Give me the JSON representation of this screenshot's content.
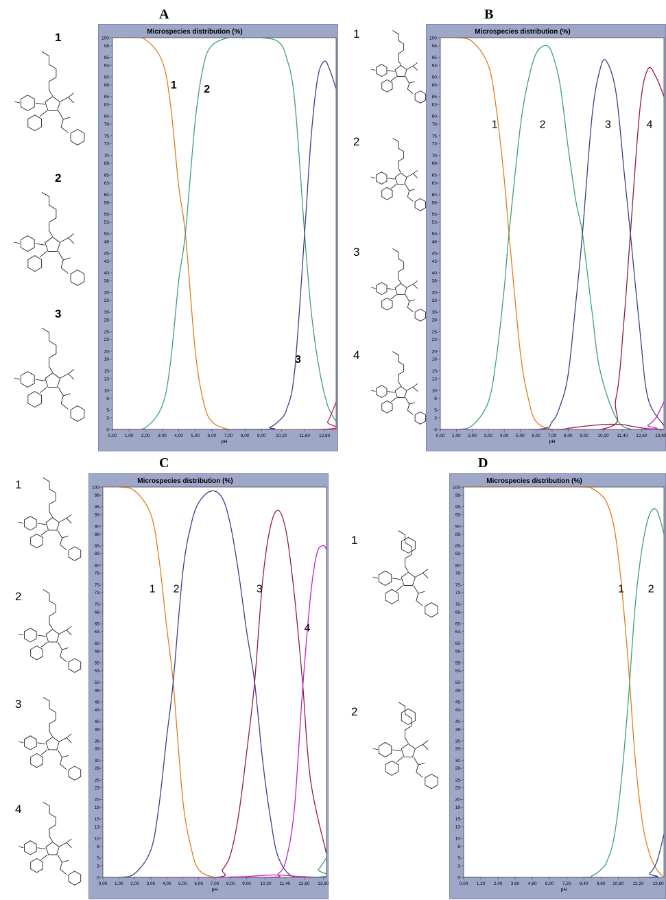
{
  "panels": [
    {
      "letter": "A",
      "molecules": [
        "1",
        "2",
        "3"
      ],
      "chart_data": {
        "type": "line",
        "title": "Microspecies distribution (%)",
        "xlabel": "pH",
        "ylabel": "",
        "xlim": [
          0,
          13.5
        ],
        "ylim": [
          0,
          100
        ],
        "xticks": [
          "0,00",
          "1,00",
          "2,00",
          "3,00",
          "4,00",
          "5,00",
          "6,00",
          "7,00",
          "8,00",
          "9,00",
          "10,20",
          "11,60",
          "12,80"
        ],
        "xtick_values": [
          0,
          1,
          2,
          3,
          4,
          5,
          6,
          7,
          8,
          9,
          10.2,
          11.6,
          12.8
        ],
        "series": [
          {
            "name": "1",
            "color": "#e07b1a",
            "x": [
              0,
              1,
              2,
              3,
              3.5,
              4,
              4.4,
              5,
              5.5,
              6,
              7,
              8,
              13.5
            ],
            "y": [
              100,
              100,
              99.5,
              94,
              83,
              62,
              50,
              20,
              7,
              2,
              0,
              0,
              0
            ]
          },
          {
            "name": "2",
            "color": "#3aa07a",
            "x": [
              0,
              1,
              2,
              3,
              3.5,
              4,
              4.4,
              5,
              5.5,
              6,
              7,
              8,
              9,
              10,
              10.5,
              11,
              11.6,
              12,
              12.5,
              13,
              13.5
            ],
            "y": [
              0,
              0,
              0.5,
              6,
              17,
              38,
              50,
              79,
              93,
              98,
              100,
              100,
              100,
              99,
              95,
              84,
              50,
              30,
              15,
              6,
              2
            ]
          },
          {
            "name": "3",
            "color": "#3a3d8a",
            "x": [
              0,
              9,
              9.5,
              10,
              10.5,
              11,
              11.6,
              12,
              12.4,
              12.8,
              13.1,
              13.5
            ],
            "y": [
              0,
              0,
              0.5,
              2,
              5,
              15,
              50,
              75,
              90,
              94,
              92,
              87
            ]
          },
          {
            "name": "",
            "color": "#c21f6a",
            "x": [
              0,
              12.5,
              13,
              13.5
            ],
            "y": [
              0,
              0,
              2,
              7
            ]
          }
        ],
        "annotations": [
          {
            "text": "1",
            "x": 3.7,
            "y": 87
          },
          {
            "text": "2",
            "x": 5.7,
            "y": 86
          },
          {
            "text": "3",
            "x": 11.2,
            "y": 17
          }
        ]
      }
    },
    {
      "letter": "B",
      "molecules": [
        "1",
        "2",
        "3",
        "4"
      ],
      "chart_data": {
        "type": "line",
        "title": "Microspecies distribution (%)",
        "xlabel": "pH",
        "ylabel": "",
        "xlim": [
          0,
          14
        ],
        "ylim": [
          0,
          100
        ],
        "xticks": [
          "0,00",
          "1,00",
          "2,00",
          "3,00",
          "4,00",
          "5,00",
          "6,00",
          "7,00",
          "8,00",
          "9,00",
          "10,20",
          "11,40",
          "12,60",
          "13,80"
        ],
        "xtick_values": [
          0,
          1,
          2,
          3,
          4,
          5,
          6,
          7,
          8,
          9,
          10.2,
          11.4,
          12.6,
          13.8
        ],
        "series": [
          {
            "name": "1",
            "color": "#e07b1a",
            "x": [
              0,
              1,
              2,
              3,
              3.5,
              4,
              4.3,
              5,
              5.5,
              6,
              7,
              8,
              14
            ],
            "y": [
              100,
              100,
              99,
              93,
              82,
              64,
              50,
              20,
              8,
              2,
              0,
              0,
              0
            ]
          },
          {
            "name": "2",
            "color": "#3aa07a",
            "x": [
              0,
              1,
              2,
              3,
              3.5,
              4,
              4.3,
              5,
              5.5,
              6,
              6.6,
              7,
              7.5,
              8,
              8.5,
              8.9,
              9.5,
              10,
              11,
              12,
              14
            ],
            "y": [
              0,
              0,
              1,
              7,
              18,
              36,
              50,
              77,
              89,
              96,
              98,
              96,
              88,
              72,
              58,
              50,
              30,
              15,
              3,
              0,
              0
            ]
          },
          {
            "name": "3",
            "color": "#3a3d8a",
            "x": [
              0,
              6,
              7,
              7.5,
              8,
              8.5,
              8.9,
              9.5,
              10,
              10.4,
              11,
              11.5,
              11.9,
              12.5,
              13,
              14
            ],
            "y": [
              0,
              0,
              2,
              6,
              14,
              33,
              50,
              80,
              92,
              94,
              86,
              66,
              50,
              25,
              8,
              1
            ]
          },
          {
            "name": "4",
            "color": "#8e1a4a",
            "x": [
              0,
              10,
              11,
              11.5,
              11.9,
              12.5,
              13,
              13.5,
              14
            ],
            "y": [
              0,
              0,
              8,
              28,
              50,
              82,
              92,
              90,
              85
            ]
          },
          {
            "name": "",
            "color": "#8e1a4a",
            "x": [
              0,
              7,
              8,
              9,
              10,
              10.5,
              11,
              11.5,
              12,
              13,
              14
            ],
            "y": [
              0,
              0,
              0.3,
              0.8,
              1.2,
              1.3,
              1.3,
              1.2,
              0.8,
              0.2,
              0
            ]
          },
          {
            "name": "",
            "color": "#c21fc4",
            "x": [
              0,
              12.5,
              13,
              13.5,
              14
            ],
            "y": [
              0,
              0,
              1,
              3,
              7
            ]
          }
        ],
        "annotations": [
          {
            "text": "1",
            "x": 3.4,
            "y": 77
          },
          {
            "text": "2",
            "x": 6.4,
            "y": 77
          },
          {
            "text": "3",
            "x": 10.5,
            "y": 77
          },
          {
            "text": "4",
            "x": 13.1,
            "y": 77
          }
        ]
      }
    },
    {
      "letter": "C",
      "molecules": [
        "1",
        "2",
        "3",
        "4"
      ],
      "chart_data": {
        "type": "line",
        "title": "Microspecies distribution (%)",
        "xlabel": "pH",
        "ylabel": "",
        "xlim": [
          0,
          14
        ],
        "ylim": [
          0,
          100
        ],
        "xticks": [
          "0,00",
          "1,00",
          "2,00",
          "3,00",
          "4,00",
          "5,00",
          "6,00",
          "7,00",
          "8,00",
          "9,00",
          "10,20",
          "11,40",
          "12,60",
          "13,80"
        ],
        "xtick_values": [
          0,
          1,
          2,
          3,
          4,
          5,
          6,
          7,
          8,
          9,
          10.2,
          11.4,
          12.6,
          13.8
        ],
        "series": [
          {
            "name": "1",
            "color": "#e07b1a",
            "x": [
              0,
              1,
              2,
              3,
              3.5,
              4,
              4.4,
              5,
              5.5,
              6,
              7,
              8,
              14
            ],
            "y": [
              100,
              100,
              99,
              93,
              82,
              64,
              50,
              20,
              8,
              2,
              0,
              0,
              0
            ]
          },
          {
            "name": "2",
            "color": "#3a3d8a",
            "x": [
              0,
              1,
              2,
              3,
              3.5,
              4,
              4.4,
              5,
              5.5,
              6,
              6.8,
              7.5,
              8,
              8.5,
              9,
              9.5,
              10,
              10.5,
              11,
              12,
              14
            ],
            "y": [
              0,
              0,
              1,
              7,
              18,
              36,
              50,
              78,
              90,
              96,
              99,
              97,
              90,
              78,
              63,
              50,
              30,
              15,
              5,
              0,
              0
            ]
          },
          {
            "name": "3",
            "color": "#8e1a4a",
            "x": [
              0,
              7,
              7.5,
              8,
              8.5,
              9,
              9.5,
              10,
              10.5,
              11,
              11.5,
              12,
              12.5,
              13,
              14
            ],
            "y": [
              0,
              0,
              2,
              6,
              16,
              32,
              50,
              76,
              90,
              94,
              88,
              72,
              50,
              25,
              6
            ]
          },
          {
            "name": "4",
            "color": "#c21fc4",
            "x": [
              0,
              10,
              11,
              11.5,
              12,
              12.5,
              13,
              13.4,
              13.8,
              14
            ],
            "y": [
              0,
              0,
              1,
              5,
              18,
              48,
              72,
              83,
              85,
              84
            ]
          },
          {
            "name": "",
            "color": "#c21fc4",
            "x": [
              0,
              7,
              8,
              9,
              10,
              10.5,
              11,
              11.5,
              12,
              13,
              14
            ],
            "y": [
              0,
              0,
              0.1,
              0.2,
              0.5,
              0.6,
              0.6,
              0.5,
              0.3,
              0.1,
              0
            ]
          },
          {
            "name": "",
            "color": "#3aa07a",
            "x": [
              0,
              13,
              13.5,
              14
            ],
            "y": [
              0,
              0,
              2,
              5
            ]
          }
        ],
        "annotations": [
          {
            "text": "1",
            "x": 3.1,
            "y": 73
          },
          {
            "text": "2",
            "x": 4.6,
            "y": 73
          },
          {
            "text": "3",
            "x": 9.8,
            "y": 73
          },
          {
            "text": "4",
            "x": 12.8,
            "y": 63
          }
        ]
      }
    },
    {
      "letter": "D",
      "molecules": [
        "1",
        "2"
      ],
      "chart_data": {
        "type": "line",
        "title": "Microspecies distribution (%)",
        "xlabel": "pH",
        "ylabel": "",
        "xlim": [
          0,
          14
        ],
        "ylim": [
          0,
          100
        ],
        "xticks": [
          "0,00",
          "1,20",
          "2,40",
          "3,60",
          "4,80",
          "6,00",
          "7,20",
          "8,40",
          "9,60",
          "10,80",
          "12,20",
          "13,60"
        ],
        "xtick_values": [
          0,
          1.2,
          2.4,
          3.6,
          4.8,
          6,
          7.2,
          8.4,
          9.6,
          10.8,
          12.2,
          13.6
        ],
        "series": [
          {
            "name": "1",
            "color": "#e07b1a",
            "x": [
              0,
              8,
              9,
              9.6,
              10,
              10.5,
              11,
              11.5,
              12,
              12.5,
              13,
              13.5,
              14
            ],
            "y": [
              100,
              100,
              99.5,
              98,
              96,
              90,
              76,
              55,
              30,
              14,
              6,
              2,
              0
            ]
          },
          {
            "name": "2",
            "color": "#3aa07a",
            "x": [
              0,
              8,
              9,
              9.6,
              10,
              10.5,
              11,
              11.5,
              12,
              12.5,
              13,
              13.5,
              14
            ],
            "y": [
              0,
              0,
              0.5,
              2,
              4,
              10,
              24,
              45,
              70,
              85,
              93,
              94,
              88
            ]
          },
          {
            "name": "",
            "color": "#3a3d8a",
            "x": [
              0,
              12.5,
              13,
              13.5,
              14
            ],
            "y": [
              0,
              0,
              1,
              4,
              11
            ]
          }
        ],
        "annotations": [
          {
            "text": "1",
            "x": 11.0,
            "y": 73
          },
          {
            "text": "2",
            "x": 13.1,
            "y": 73
          }
        ]
      }
    }
  ]
}
